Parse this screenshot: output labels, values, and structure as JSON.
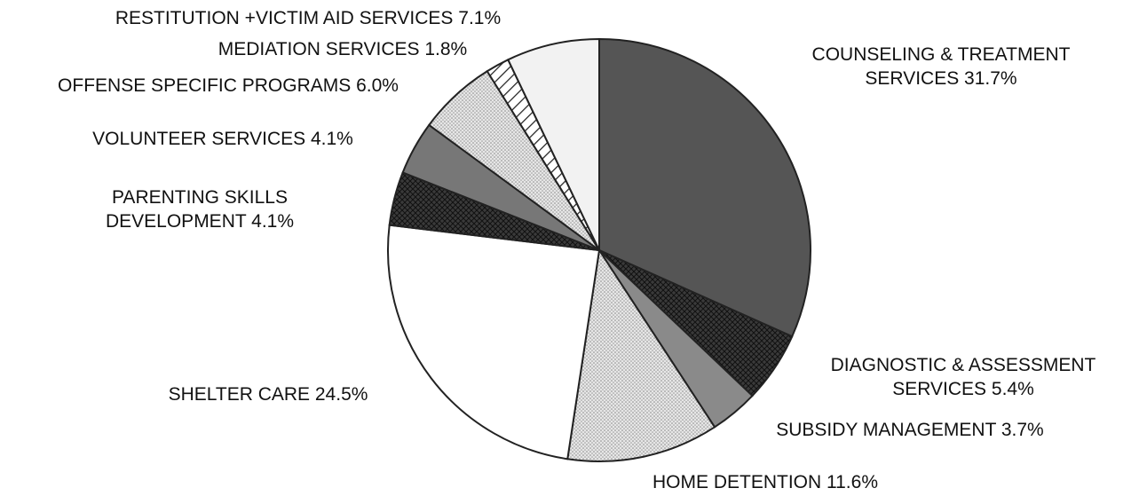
{
  "chart_data": {
    "type": "pie",
    "title": "",
    "start_angle_deg": 0,
    "direction": "clockwise",
    "slices": [
      {
        "label": "COUNSELING & TREATMENT SERVICES",
        "value": 31.7,
        "percent_text": "31.7%",
        "label_lines": [
          "COUNSELING & TREATMENT",
          "SERVICES 31.7%"
        ],
        "fill": "#555555",
        "pattern": "solid"
      },
      {
        "label": "DIAGNOSTIC & ASSESSMENT SERVICES",
        "value": 5.4,
        "percent_text": "5.4%",
        "label_lines": [
          "DIAGNOSTIC & ASSESSMENT",
          "SERVICES 5.4%"
        ],
        "fill": "#3a3a3a",
        "pattern": "crosshatch"
      },
      {
        "label": "SUBSIDY MANAGEMENT",
        "value": 3.7,
        "percent_text": "3.7%",
        "label_lines": [
          "SUBSIDY MANAGEMENT 3.7%"
        ],
        "fill": "#8a8a8a",
        "pattern": "solid"
      },
      {
        "label": "HOME DETENTION",
        "value": 11.6,
        "percent_text": "11.6%",
        "label_lines": [
          "HOME DETENTION 11.6%"
        ],
        "fill": "#d8d8d8",
        "pattern": "dots"
      },
      {
        "label": "SHELTER CARE",
        "value": 24.5,
        "percent_text": "24.5%",
        "label_lines": [
          "SHELTER CARE 24.5%"
        ],
        "fill": "#ffffff",
        "pattern": "solid"
      },
      {
        "label": "PARENTING SKILLS DEVELOPMENT",
        "value": 4.1,
        "percent_text": "4.1%",
        "label_lines": [
          "PARENTING SKILLS",
          "DEVELOPMENT 4.1%"
        ],
        "fill": "#2e2e2e",
        "pattern": "crosshatch"
      },
      {
        "label": "VOLUNTEER SERVICES",
        "value": 4.1,
        "percent_text": "4.1%",
        "label_lines": [
          "VOLUNTEER SERVICES 4.1%"
        ],
        "fill": "#777777",
        "pattern": "solid"
      },
      {
        "label": "OFFENSE SPECIFIC PROGRAMS",
        "value": 6.0,
        "percent_text": "6.0%",
        "label_lines": [
          "OFFENSE SPECIFIC PROGRAMS 6.0%"
        ],
        "fill": "#c4c4c4",
        "pattern": "dots"
      },
      {
        "label": "MEDIATION SERVICES",
        "value": 1.8,
        "percent_text": "1.8%",
        "label_lines": [
          "MEDIATION SERVICES 1.8%"
        ],
        "fill": "#ffffff",
        "pattern": "diagonal"
      },
      {
        "label": "RESTITUTION +VICTIM AID SERVICES",
        "value": 7.1,
        "percent_text": "7.1%",
        "label_lines": [
          "RESTITUTION +VICTIM AID SERVICES 7.1%"
        ],
        "fill": "#f2f2f2",
        "pattern": "solid"
      }
    ]
  }
}
